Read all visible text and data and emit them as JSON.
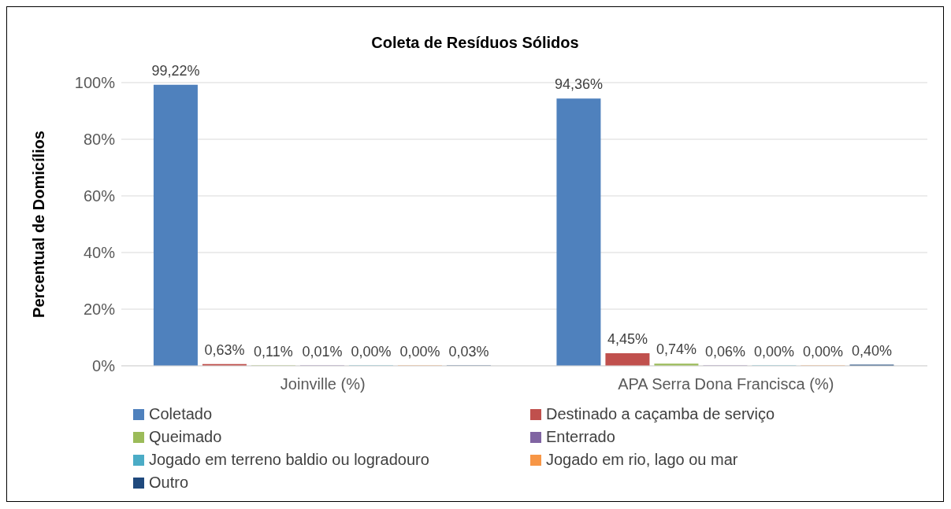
{
  "chart_data": {
    "type": "bar",
    "title": "Coleta de Resíduos Sólidos",
    "ylabel": "Percentual de Domicílios",
    "categories": [
      "Joinville (%)",
      "APA Serra Dona Francisca (%)"
    ],
    "series": [
      {
        "name": "Coletado",
        "color": "#4f81bd",
        "values": [
          99.22,
          94.36
        ],
        "value_labels": [
          "99,22%",
          "94,36%"
        ]
      },
      {
        "name": "Destinado a caçamba de serviço",
        "color": "#c0504d",
        "values": [
          0.63,
          4.45
        ],
        "value_labels": [
          "0,63%",
          "4,45%"
        ]
      },
      {
        "name": "Queimado",
        "color": "#9bbb59",
        "values": [
          0.11,
          0.74
        ],
        "value_labels": [
          "0,11%",
          "0,74%"
        ]
      },
      {
        "name": "Enterrado",
        "color": "#8064a2",
        "values": [
          0.01,
          0.06
        ],
        "value_labels": [
          "0,01%",
          "0,06%"
        ]
      },
      {
        "name": "Jogado em terreno baldio ou logradouro",
        "color": "#4bacc6",
        "values": [
          0.0,
          0.0
        ],
        "value_labels": [
          "0,00%",
          "0,00%"
        ]
      },
      {
        "name": "Jogado em rio, lago ou mar",
        "color": "#f79646",
        "values": [
          0.0,
          0.0
        ],
        "value_labels": [
          "0,00%",
          "0,00%"
        ]
      },
      {
        "name": "Outro",
        "color": "#1f497d",
        "values": [
          0.03,
          0.4
        ],
        "value_labels": [
          "0,03%",
          "0,40%"
        ]
      }
    ],
    "ylim": [
      0,
      100
    ],
    "yticks": [
      {
        "value": 0,
        "label": "0%"
      },
      {
        "value": 20,
        "label": "20%"
      },
      {
        "value": 40,
        "label": "40%"
      },
      {
        "value": 60,
        "label": "60%"
      },
      {
        "value": 80,
        "label": "80%"
      },
      {
        "value": 100,
        "label": "100%"
      }
    ],
    "grid": "y",
    "legend": "bottom"
  }
}
